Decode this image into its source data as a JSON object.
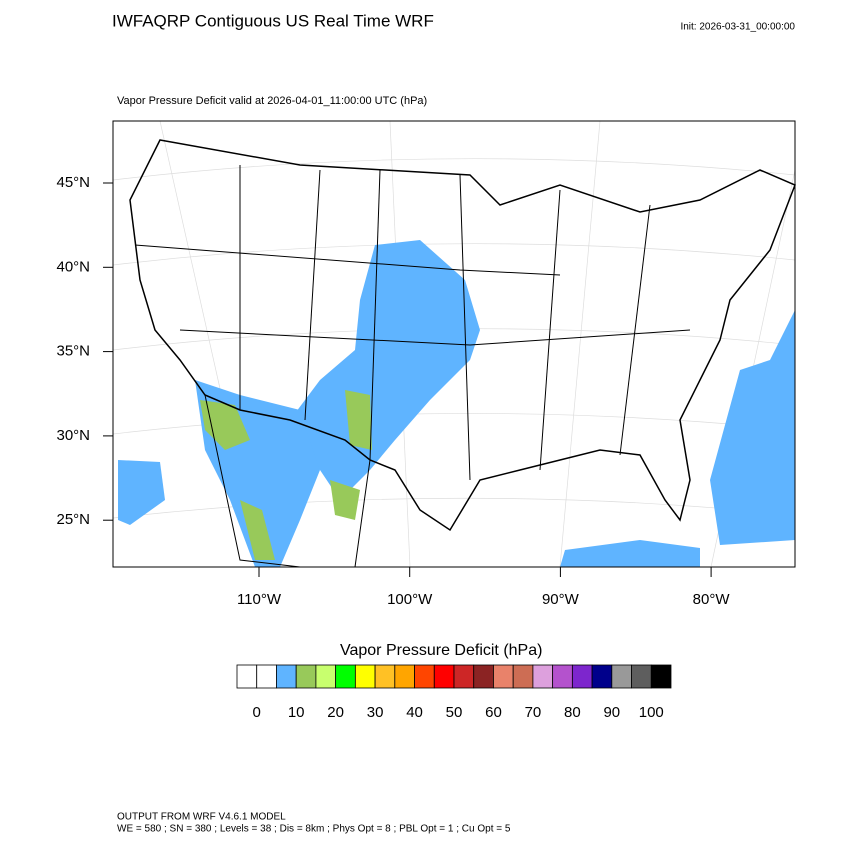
{
  "header": {
    "title": "IWFAQRP Contiguous US Real Time WRF",
    "init": "Init: 2026-03-31_00:00:00",
    "subtitle": "Vapor Pressure Deficit valid at 2026-04-01_11:00:00 UTC   (hPa)"
  },
  "map": {
    "lat_labels": [
      "45°N",
      "40°N",
      "35°N",
      "30°N",
      "25°N"
    ],
    "lon_labels": [
      "110°W",
      "100°W",
      "90°W",
      "80°W"
    ]
  },
  "colorbar": {
    "title": "Vapor Pressure Deficit  (hPa)",
    "labels": [
      0,
      10,
      20,
      30,
      40,
      50,
      60,
      70,
      80,
      90,
      100
    ],
    "colors": [
      "#ffffff",
      "#ffffff",
      "#5fb4ff",
      "#98c95a",
      "#c8ff6e",
      "#00ff00",
      "#ffff00",
      "#ffc125",
      "#ffa500",
      "#ff4500",
      "#ff0000",
      "#cd2626",
      "#8b2323",
      "#e9826a",
      "#cd6d54",
      "#dda0dd",
      "#b452cd",
      "#7d26cd",
      "#00008b",
      "#999999",
      "#5e5e5e",
      "#000000"
    ]
  },
  "footer": {
    "line1": "OUTPUT FROM WRF V4.6.1 MODEL",
    "line2": "WE = 580 ; SN = 380 ; Levels = 38 ; Dis = 8km ; Phys Opt = 8 ; PBL Opt = 1 ; Cu Opt = 5"
  }
}
